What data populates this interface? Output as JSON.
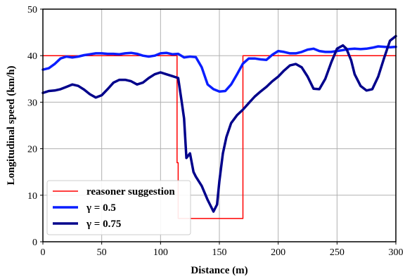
{
  "chart_data": {
    "type": "line",
    "xlabel": "Distance (m)",
    "ylabel": "Longitudinal speed (km/h)",
    "xlim": [
      0,
      300
    ],
    "ylim": [
      0,
      50
    ],
    "xticks": [
      0,
      50,
      100,
      150,
      200,
      250,
      300
    ],
    "yticks": [
      0,
      10,
      20,
      30,
      40,
      50
    ],
    "grid": true,
    "legend_position": "bottom-left",
    "series": [
      {
        "name": "reasoner suggestion",
        "color": "#ff0000",
        "style": "thin",
        "x": [
          0,
          114,
          114,
          115,
          115,
          170,
          170,
          300
        ],
        "y": [
          40,
          40,
          17,
          17,
          5,
          5,
          40,
          40
        ]
      },
      {
        "name": "γ = 0.5",
        "color": "#0a1eff",
        "style": "thick",
        "x": [
          0,
          5,
          10,
          15,
          20,
          25,
          30,
          35,
          40,
          45,
          50,
          55,
          60,
          65,
          70,
          75,
          80,
          85,
          90,
          95,
          100,
          105,
          110,
          115,
          120,
          125,
          130,
          135,
          140,
          145,
          150,
          155,
          160,
          165,
          170,
          175,
          180,
          185,
          190,
          195,
          200,
          205,
          210,
          215,
          220,
          225,
          230,
          235,
          240,
          245,
          250,
          255,
          260,
          265,
          270,
          275,
          280,
          285,
          290,
          295,
          300
        ],
        "y": [
          37,
          37.3,
          38.2,
          39.4,
          39.8,
          39.6,
          39.8,
          40.1,
          40.3,
          40.5,
          40.5,
          40.4,
          40.4,
          40.3,
          40.5,
          40.6,
          40.4,
          40,
          39.8,
          40,
          40.5,
          40.6,
          40.3,
          40.4,
          39.6,
          39.8,
          39.7,
          37.5,
          33.8,
          32.8,
          32.3,
          32.4,
          33.8,
          36,
          38.3,
          39.4,
          39.4,
          39.2,
          39.1,
          40.2,
          41,
          40.8,
          40.5,
          40.5,
          40.8,
          41.3,
          41.5,
          41,
          40.8,
          40.8,
          41,
          41.2,
          41.4,
          41.5,
          41.4,
          41.5,
          41.7,
          42,
          41.9,
          41.8,
          41.9
        ]
      },
      {
        "name": "γ = 0.75",
        "color": "#00008b",
        "style": "thick",
        "x": [
          0,
          5,
          10,
          15,
          20,
          25,
          30,
          35,
          40,
          45,
          50,
          55,
          60,
          65,
          70,
          75,
          80,
          85,
          90,
          95,
          100,
          105,
          110,
          115,
          118,
          120,
          122,
          125,
          128,
          130,
          135,
          140,
          145,
          148,
          150,
          153,
          156,
          160,
          165,
          170,
          175,
          180,
          185,
          190,
          195,
          200,
          205,
          210,
          215,
          220,
          225,
          230,
          235,
          240,
          245,
          250,
          255,
          258,
          262,
          265,
          270,
          275,
          280,
          285,
          290,
          295,
          300
        ],
        "y": [
          32,
          32.4,
          32.5,
          32.8,
          33.3,
          33.8,
          33.5,
          32.7,
          31.7,
          31,
          31.5,
          32.8,
          34.2,
          34.8,
          34.8,
          34.5,
          33.8,
          34.2,
          35.2,
          36,
          36.4,
          36,
          35.6,
          35.2,
          30,
          26.5,
          18,
          19,
          15,
          14,
          12,
          9,
          6.5,
          8,
          13,
          19,
          22.5,
          25.5,
          27.2,
          28.4,
          29.8,
          31.2,
          32.3,
          33.3,
          34.5,
          35.5,
          36.8,
          37.9,
          38.2,
          37.5,
          35.5,
          32.9,
          32.8,
          35,
          38.5,
          41.5,
          42.2,
          41.5,
          39,
          36,
          33.5,
          32.5,
          32.8,
          35.5,
          39.5,
          43.2,
          44.2
        ]
      }
    ]
  }
}
